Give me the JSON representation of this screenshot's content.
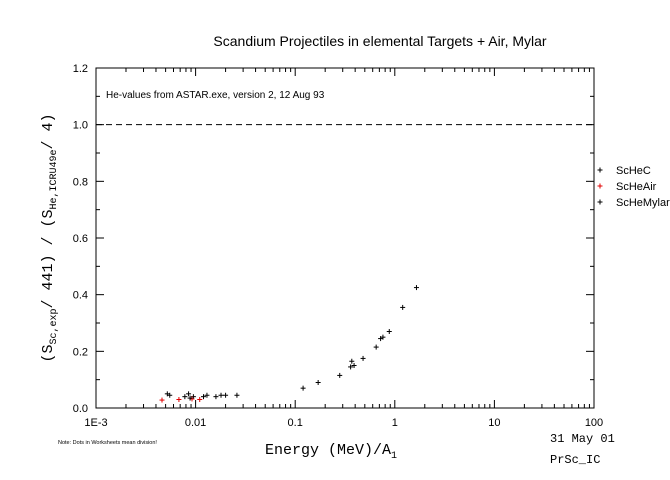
{
  "chart_data": {
    "type": "scatter",
    "title": "Scandium Projectiles in elemental Targets + Air, Mylar",
    "annotation": "He-values from ASTAR.exe, version 2, 12 Aug 93",
    "xlabel": {
      "main": "Energy (MeV)/A",
      "sub": "1"
    },
    "ylabel": {
      "p1": "(S",
      "s1": "Sc,exp",
      "p2": "/ 441) / (S",
      "s2": "He,ICRU49e",
      "p3": "/ 4)"
    },
    "xscale": "log",
    "xlim": [
      0.001,
      100
    ],
    "ylim": [
      0,
      1.2
    ],
    "xticks": [
      {
        "value": 0.001,
        "label": "1E-3"
      },
      {
        "value": 0.01,
        "label": "0.01"
      },
      {
        "value": 0.1,
        "label": "0.1"
      },
      {
        "value": 1,
        "label": "1"
      },
      {
        "value": 10,
        "label": "10"
      },
      {
        "value": 100,
        "label": "100"
      }
    ],
    "yticks": [
      {
        "value": 0,
        "label": "0.0"
      },
      {
        "value": 0.2,
        "label": "0.2"
      },
      {
        "value": 0.4,
        "label": "0.4"
      },
      {
        "value": 0.6,
        "label": "0.6"
      },
      {
        "value": 0.8,
        "label": "0.8"
      },
      {
        "value": 1.0,
        "label": "1.0"
      },
      {
        "value": 1.2,
        "label": "1.2"
      }
    ],
    "reference_line": {
      "y": 1.0,
      "style": "dashed"
    },
    "grid": false,
    "legend_position": "right",
    "series": [
      {
        "name": "ScHeC",
        "color": "#000000",
        "marker": "plus",
        "points": [
          [
            0.0052,
            0.05
          ],
          [
            0.0085,
            0.05
          ],
          [
            0.0095,
            0.04
          ],
          [
            0.013,
            0.045
          ],
          [
            0.016,
            0.04
          ],
          [
            0.018,
            0.045
          ],
          [
            0.02,
            0.045
          ],
          [
            0.026,
            0.045
          ],
          [
            0.12,
            0.07
          ],
          [
            0.17,
            0.09
          ],
          [
            0.28,
            0.115
          ],
          [
            0.36,
            0.145
          ],
          [
            0.37,
            0.165
          ],
          [
            0.39,
            0.15
          ],
          [
            0.48,
            0.175
          ],
          [
            0.65,
            0.215
          ],
          [
            0.76,
            0.25
          ],
          [
            0.88,
            0.27
          ],
          [
            1.2,
            0.355
          ],
          [
            1.65,
            0.425
          ]
        ]
      },
      {
        "name": "ScHeAir",
        "color": "#e00000",
        "marker": "plus",
        "points": [
          [
            0.0046,
            0.028
          ],
          [
            0.0068,
            0.03
          ],
          [
            0.0092,
            0.032
          ],
          [
            0.011,
            0.03
          ]
        ]
      },
      {
        "name": "ScHeMylar",
        "color": "#000000",
        "marker": "plus",
        "points": [
          [
            0.0055,
            0.045
          ],
          [
            0.0078,
            0.04
          ],
          [
            0.0088,
            0.035
          ],
          [
            0.012,
            0.04
          ],
          [
            0.72,
            0.245
          ]
        ]
      }
    ]
  },
  "footer": {
    "note": "Note: Dots in Worksheets mean division!",
    "date": "31 May 01",
    "code": "PrSc_IC"
  }
}
